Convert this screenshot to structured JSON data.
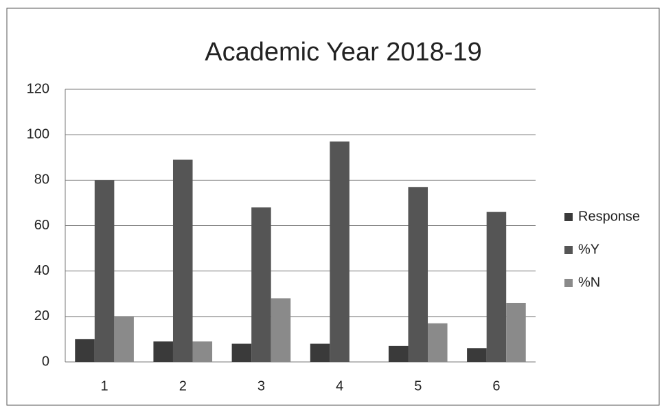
{
  "chart_data": {
    "type": "bar",
    "title": "Academic Year 2018-19",
    "categories": [
      "1",
      "2",
      "3",
      "4",
      "5",
      "6"
    ],
    "series": [
      {
        "name": "Response",
        "color": "#3a3a3a",
        "values": [
          10,
          9,
          8,
          8,
          7,
          6
        ]
      },
      {
        "name": "%Y",
        "color": "#555555",
        "values": [
          80,
          89,
          68,
          97,
          77,
          66
        ]
      },
      {
        "name": "%N",
        "color": "#8a8a8a",
        "values": [
          20,
          9,
          28,
          0,
          17,
          26
        ]
      }
    ],
    "ylim": [
      0,
      120
    ],
    "yticks": [
      0,
      20,
      40,
      60,
      80,
      100,
      120
    ],
    "grid": true,
    "legend": "right"
  }
}
